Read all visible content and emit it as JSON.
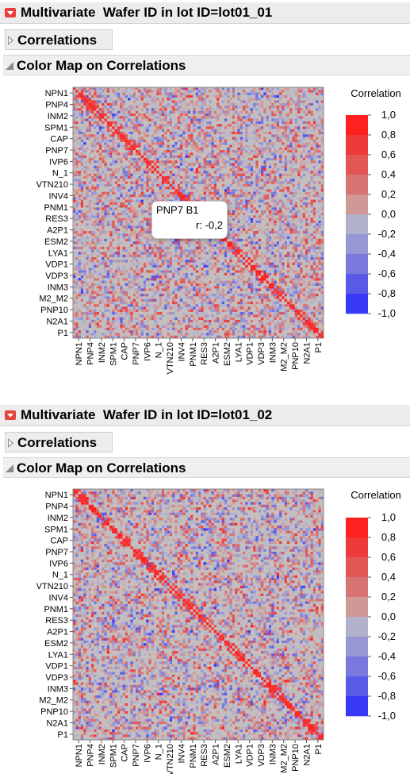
{
  "panels": [
    {
      "header_title": "Multivariate  Wafer ID in lot ID=lot01_01",
      "correlations_label": "Correlations",
      "colormap_label": "Color Map on Correlations",
      "legend_title": "Correlation",
      "tooltip": {
        "name": "PNP7 B1",
        "value": "r: -0,2"
      },
      "seed": 7
    },
    {
      "header_title": "Multivariate  Wafer ID in lot ID=lot01_02",
      "correlations_label": "Correlations",
      "colormap_label": "Color Map on Correlations",
      "legend_title": "Correlation",
      "seed": 23
    }
  ],
  "chart_data": {
    "type": "heatmap",
    "y_tick_labels": [
      "NPN1",
      "PNP4",
      "INM2",
      "SPM1",
      "CAP",
      "PNP7",
      "IVP6",
      "N_1",
      "VTN210",
      "INV4",
      "PNM1",
      "RES3",
      "A2P1",
      "ESM2",
      "LYA1",
      "VDP1",
      "VDP3",
      "INM3",
      "M2_M2",
      "PNP10",
      "N2A1",
      "P1"
    ],
    "x_tick_labels": [
      "NPN1",
      "PNP4",
      "INM2",
      "SPM1",
      "CAP",
      "PNP7",
      "IVP6",
      "N_1",
      "VTN210",
      "INV4",
      "PNM1",
      "RES3",
      "A2P1",
      "ESM2",
      "LYA1",
      "VDP1",
      "VDP3",
      "INM3",
      "M2_M2",
      "PNP10",
      "N2A1",
      "P1"
    ],
    "legend_values": [
      "1,0",
      "0,8",
      "0,6",
      "0,4",
      "0,2",
      "0,0",
      "-0,2",
      "-0,4",
      "-0,6",
      "-0,8",
      "-1,0"
    ],
    "legend_colors": [
      "#ff2020",
      "#ee3a3a",
      "#e35656",
      "#d87373",
      "#d19898",
      "#c4bdbd",
      "#b2b2cc",
      "#9797d6",
      "#7878dd",
      "#5a5ae8",
      "#3838f8"
    ],
    "value_range": [
      -1,
      1
    ]
  }
}
